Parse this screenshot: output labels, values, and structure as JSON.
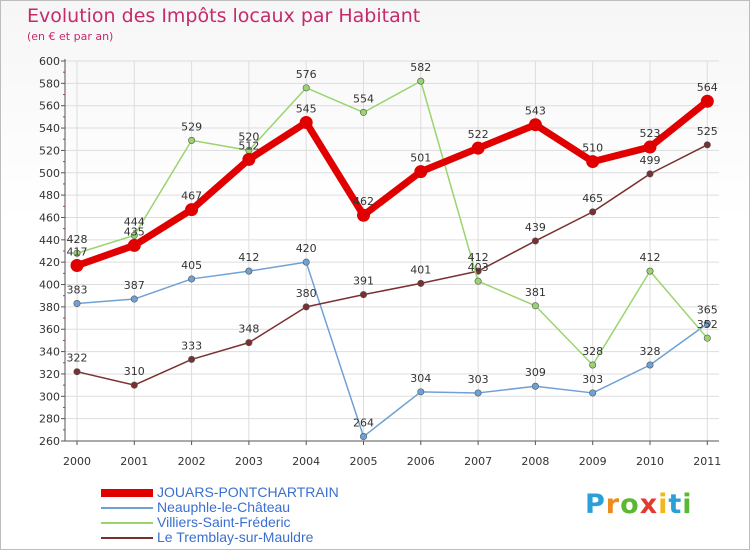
{
  "chart_data": {
    "type": "line",
    "title": "Evolution des Impôts locaux par Habitant",
    "subtitle": "(en € et par an)",
    "xlabel": "",
    "ylabel": "",
    "x": [
      "2000",
      "2001",
      "2002",
      "2003",
      "2004",
      "2005",
      "2006",
      "2007",
      "2008",
      "2009",
      "2010",
      "2011"
    ],
    "ylim": [
      260,
      600
    ],
    "yticks": [
      "260",
      "280",
      "300",
      "320",
      "340",
      "360",
      "380",
      "400",
      "420",
      "440",
      "460",
      "480",
      "500",
      "520",
      "540",
      "560",
      "580",
      "600"
    ],
    "grid": true,
    "legend_position": "bottom-left",
    "series": [
      {
        "name": "JOUARS-PONTCHARTRAIN",
        "color": "#e00000",
        "values": [
          417,
          435,
          467,
          512,
          545,
          462,
          501,
          522,
          543,
          510,
          523,
          564
        ],
        "labels": [
          "417",
          "435",
          "467",
          "512",
          "545",
          "462",
          "501",
          "522",
          "543",
          "510",
          "523",
          "564"
        ]
      },
      {
        "name": "Neauphle-le-Château",
        "color": "#6fa1d4",
        "values": [
          383,
          387,
          405,
          412,
          420,
          264,
          304,
          303,
          309,
          303,
          328,
          365
        ],
        "labels": [
          "383",
          "387",
          "405",
          "412",
          "420",
          "264",
          "304",
          "303",
          "309",
          "303",
          "328",
          "365"
        ]
      },
      {
        "name": "Villiers-Saint-Fréderic",
        "color": "#9ad46f",
        "values": [
          428,
          444,
          529,
          520,
          576,
          554,
          582,
          403,
          381,
          328,
          412,
          352
        ],
        "labels": [
          "428",
          "444",
          "529",
          "520",
          "576",
          "554",
          "582",
          "403",
          "381",
          "328",
          "412",
          "352"
        ]
      },
      {
        "name": "Le Tremblay-sur-Mauldre",
        "color": "#7a3030",
        "values": [
          322,
          310,
          333,
          348,
          380,
          391,
          401,
          412,
          439,
          465,
          499,
          525
        ],
        "labels": [
          "322",
          "310",
          "333",
          "348",
          "380",
          "391",
          "401",
          "412",
          "439",
          "465",
          "499",
          "525"
        ]
      }
    ]
  },
  "style": {
    "title_color": "#c62a6c",
    "legend_text_color": "#3a6fd0",
    "axis_color": "#555555",
    "grid_color": "#dddddd",
    "label_color": "#333333"
  },
  "logo": {
    "text": "Proxiti",
    "letters": [
      "P",
      "r",
      "o",
      "x",
      "i",
      "t",
      "i"
    ],
    "colors": [
      "#2b9fd8",
      "#f08a1e",
      "#5bb832",
      "#e23b2e",
      "#f0b81e",
      "#2b9fd8",
      "#5bb832"
    ]
  }
}
